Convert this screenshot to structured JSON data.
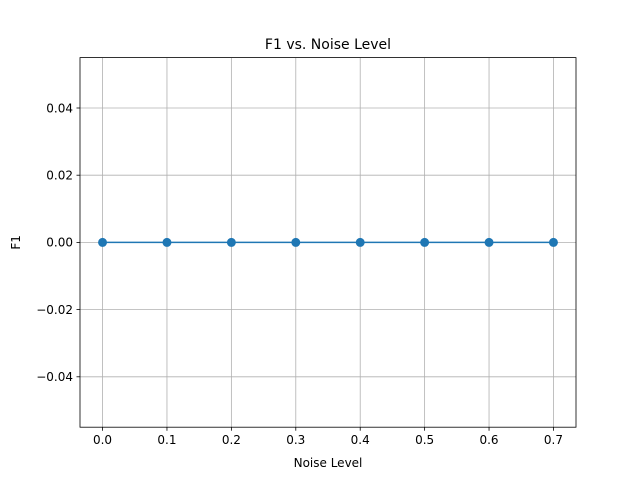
{
  "chart_data": {
    "type": "line",
    "title": "F1 vs. Noise Level",
    "xlabel": "Noise Level",
    "ylabel": "F1",
    "x": [
      0.0,
      0.1,
      0.2,
      0.3,
      0.4,
      0.5,
      0.6,
      0.7
    ],
    "series": [
      {
        "values": [
          0,
          0,
          0,
          0,
          0,
          0,
          0,
          0
        ],
        "color": "#1f77b4",
        "marker": "circle"
      }
    ],
    "xlim": [
      -0.035,
      0.735
    ],
    "ylim": [
      -0.055,
      0.055
    ],
    "xticks": [
      0.0,
      0.1,
      0.2,
      0.3,
      0.4,
      0.5,
      0.6,
      0.7
    ],
    "xtick_labels": [
      "0.0",
      "0.1",
      "0.2",
      "0.3",
      "0.4",
      "0.5",
      "0.6",
      "0.7"
    ],
    "yticks": [
      -0.04,
      -0.02,
      0.0,
      0.02,
      0.04
    ],
    "ytick_labels": [
      "−0.04",
      "−0.02",
      "0.00",
      "0.02",
      "0.04"
    ],
    "grid": true,
    "legend": "none"
  }
}
